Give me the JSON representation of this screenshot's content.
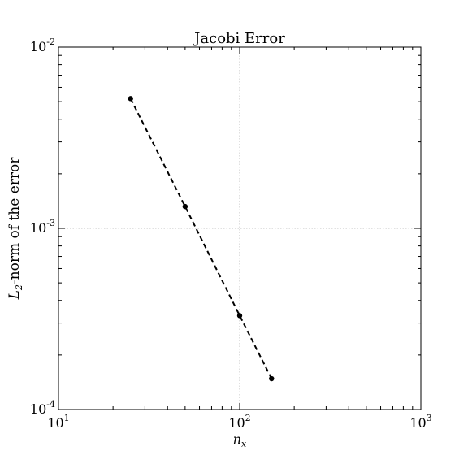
{
  "chart_data": {
    "type": "scatter",
    "title": "Jacobi Error",
    "xlabel_main": "n",
    "xlabel_sub": "x",
    "ylabel_main": "L",
    "ylabel_sub": "2",
    "ylabel_rest": "-norm of the error",
    "xscale": "log",
    "yscale": "log",
    "xlim": [
      10,
      1000
    ],
    "ylim": [
      0.0001,
      0.01
    ],
    "grid": true,
    "x_ticks": [
      {
        "value": 10,
        "base": "10",
        "exp": "1"
      },
      {
        "value": 100,
        "base": "10",
        "exp": "2"
      },
      {
        "value": 1000,
        "base": "10",
        "exp": "3"
      }
    ],
    "y_ticks": [
      {
        "value": 0.0001,
        "base": "10",
        "exp": "-4"
      },
      {
        "value": 0.001,
        "base": "10",
        "exp": "-3"
      },
      {
        "value": 0.01,
        "base": "10",
        "exp": "-2"
      }
    ],
    "series": [
      {
        "line_style": "dashed",
        "marker": "circle",
        "color": "#000000",
        "x": [
          25,
          50,
          100,
          150
        ],
        "y": [
          0.0052,
          0.00132,
          0.00033,
          0.000148
        ]
      }
    ]
  }
}
